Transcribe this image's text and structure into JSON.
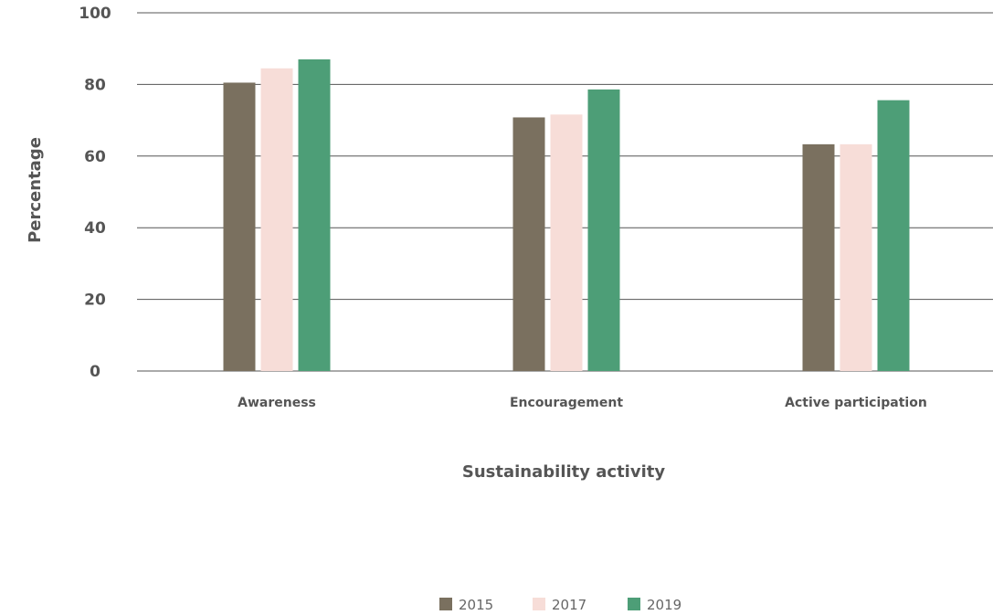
{
  "chart_data": {
    "type": "bar",
    "title": "",
    "xlabel": "Sustainability activity",
    "ylabel": "Percentage",
    "ylim": [
      0,
      100
    ],
    "yticks": [
      0,
      20,
      40,
      60,
      80,
      100
    ],
    "categories": [
      "Awareness",
      "Encouragement",
      "Active participation"
    ],
    "series": [
      {
        "name": "2015",
        "color": "#7a705f",
        "values": [
          80.5,
          70.8,
          63.3
        ]
      },
      {
        "name": "2017",
        "color": "#f7ddd8",
        "values": [
          84.5,
          71.6,
          63.3
        ]
      },
      {
        "name": "2019",
        "color": "#4d9e77",
        "values": [
          87.0,
          78.6,
          75.6
        ]
      }
    ],
    "grid": true,
    "legend_position": "bottom-center"
  }
}
